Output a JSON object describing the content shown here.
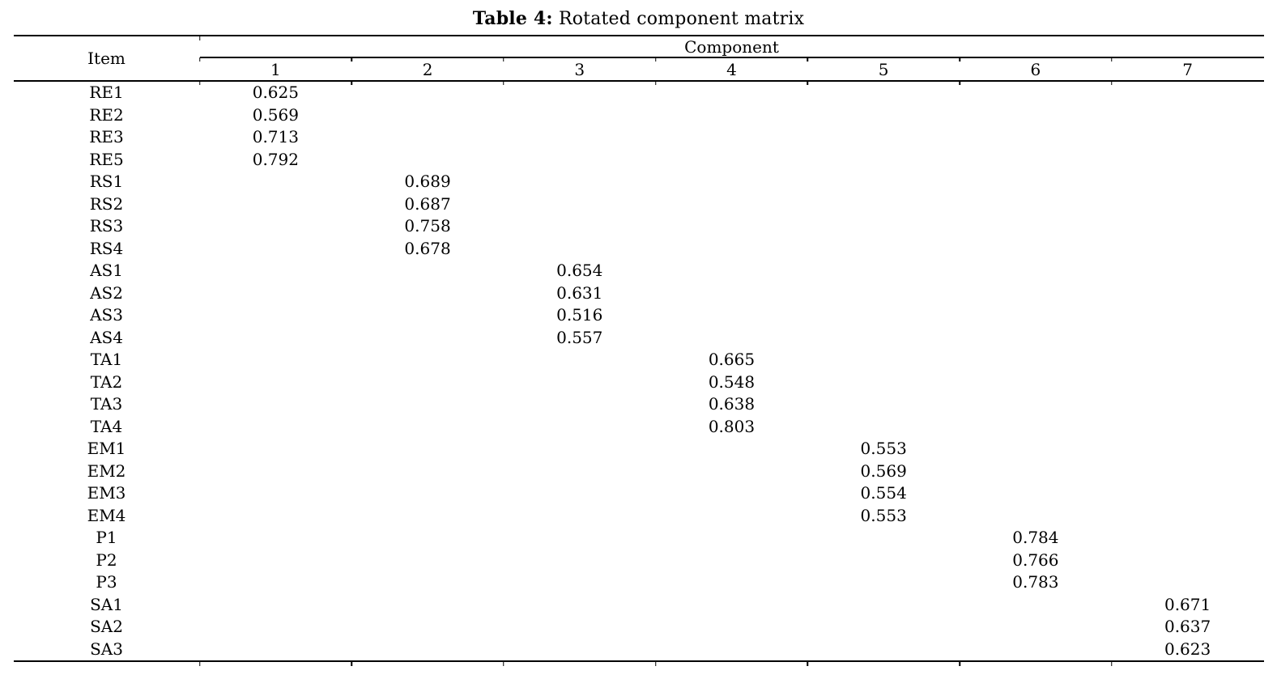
{
  "caption": {
    "label": "Table 4:",
    "text": "Rotated component matrix"
  },
  "table": {
    "item_header": "Item",
    "component_header": "Component",
    "component_columns": [
      "1",
      "2",
      "3",
      "4",
      "5",
      "6",
      "7"
    ],
    "rows": [
      {
        "item": "RE1",
        "component": 1,
        "value": "0.625"
      },
      {
        "item": "RE2",
        "component": 1,
        "value": "0.569"
      },
      {
        "item": "RE3",
        "component": 1,
        "value": "0.713"
      },
      {
        "item": "RE5",
        "component": 1,
        "value": "0.792"
      },
      {
        "item": "RS1",
        "component": 2,
        "value": "0.689"
      },
      {
        "item": "RS2",
        "component": 2,
        "value": "0.687"
      },
      {
        "item": "RS3",
        "component": 2,
        "value": "0.758"
      },
      {
        "item": "RS4",
        "component": 2,
        "value": "0.678"
      },
      {
        "item": "AS1",
        "component": 3,
        "value": "0.654"
      },
      {
        "item": "AS2",
        "component": 3,
        "value": "0.631"
      },
      {
        "item": "AS3",
        "component": 3,
        "value": "0.516"
      },
      {
        "item": "AS4",
        "component": 3,
        "value": "0.557"
      },
      {
        "item": "TA1",
        "component": 4,
        "value": "0.665"
      },
      {
        "item": "TA2",
        "component": 4,
        "value": "0.548"
      },
      {
        "item": "TA3",
        "component": 4,
        "value": "0.638"
      },
      {
        "item": "TA4",
        "component": 4,
        "value": "0.803"
      },
      {
        "item": "EM1",
        "component": 5,
        "value": "0.553"
      },
      {
        "item": "EM2",
        "component": 5,
        "value": "0.569"
      },
      {
        "item": "EM3",
        "component": 5,
        "value": "0.554"
      },
      {
        "item": "EM4",
        "component": 5,
        "value": "0.553"
      },
      {
        "item": "P1",
        "component": 6,
        "value": "0.784"
      },
      {
        "item": "P2",
        "component": 6,
        "value": "0.766"
      },
      {
        "item": "P3",
        "component": 6,
        "value": "0.783"
      },
      {
        "item": "SA1",
        "component": 7,
        "value": "0.671"
      },
      {
        "item": "SA2",
        "component": 7,
        "value": "0.637"
      },
      {
        "item": "SA3",
        "component": 7,
        "value": "0.623"
      }
    ]
  },
  "colors": {
    "text": "#000000",
    "rule": "#000000",
    "background": "#ffffff"
  }
}
